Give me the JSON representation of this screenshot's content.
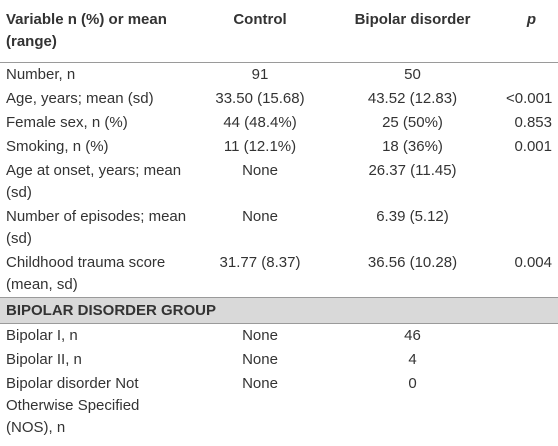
{
  "table": {
    "header": [
      "Variable n (%) or mean (range)",
      "Control",
      "Bipolar disorder",
      "p"
    ],
    "rows": [
      [
        "Number, n",
        "91",
        "50",
        ""
      ],
      [
        "Age, years; mean (sd)",
        "33.50 (15.68)",
        "43.52 (12.83)",
        "<0.001"
      ],
      [
        "Female sex, n (%)",
        "44 (48.4%)",
        "25 (50%)",
        "0.853"
      ],
      [
        "Smoking, n (%)",
        "11 (12.1%)",
        "18 (36%)",
        "0.001"
      ],
      [
        "Age at onset, years; mean (sd)",
        "None",
        "26.37 (11.45)",
        ""
      ],
      [
        "Number of episodes; mean (sd)",
        "None",
        "6.39 (5.12)",
        ""
      ],
      [
        "Childhood trauma score (mean, sd)",
        "31.77 (8.37)",
        "36.56 (10.28)",
        "0.004"
      ]
    ],
    "section": "BIPOLAR DISORDER GROUP",
    "section_rows": [
      [
        "Bipolar I, n",
        "None",
        "46",
        ""
      ],
      [
        "Bipolar II, n",
        "None",
        "4",
        ""
      ],
      [
        "Bipolar disorder Not Otherwise Specified (NOS), n",
        "None",
        "0",
        ""
      ]
    ]
  }
}
